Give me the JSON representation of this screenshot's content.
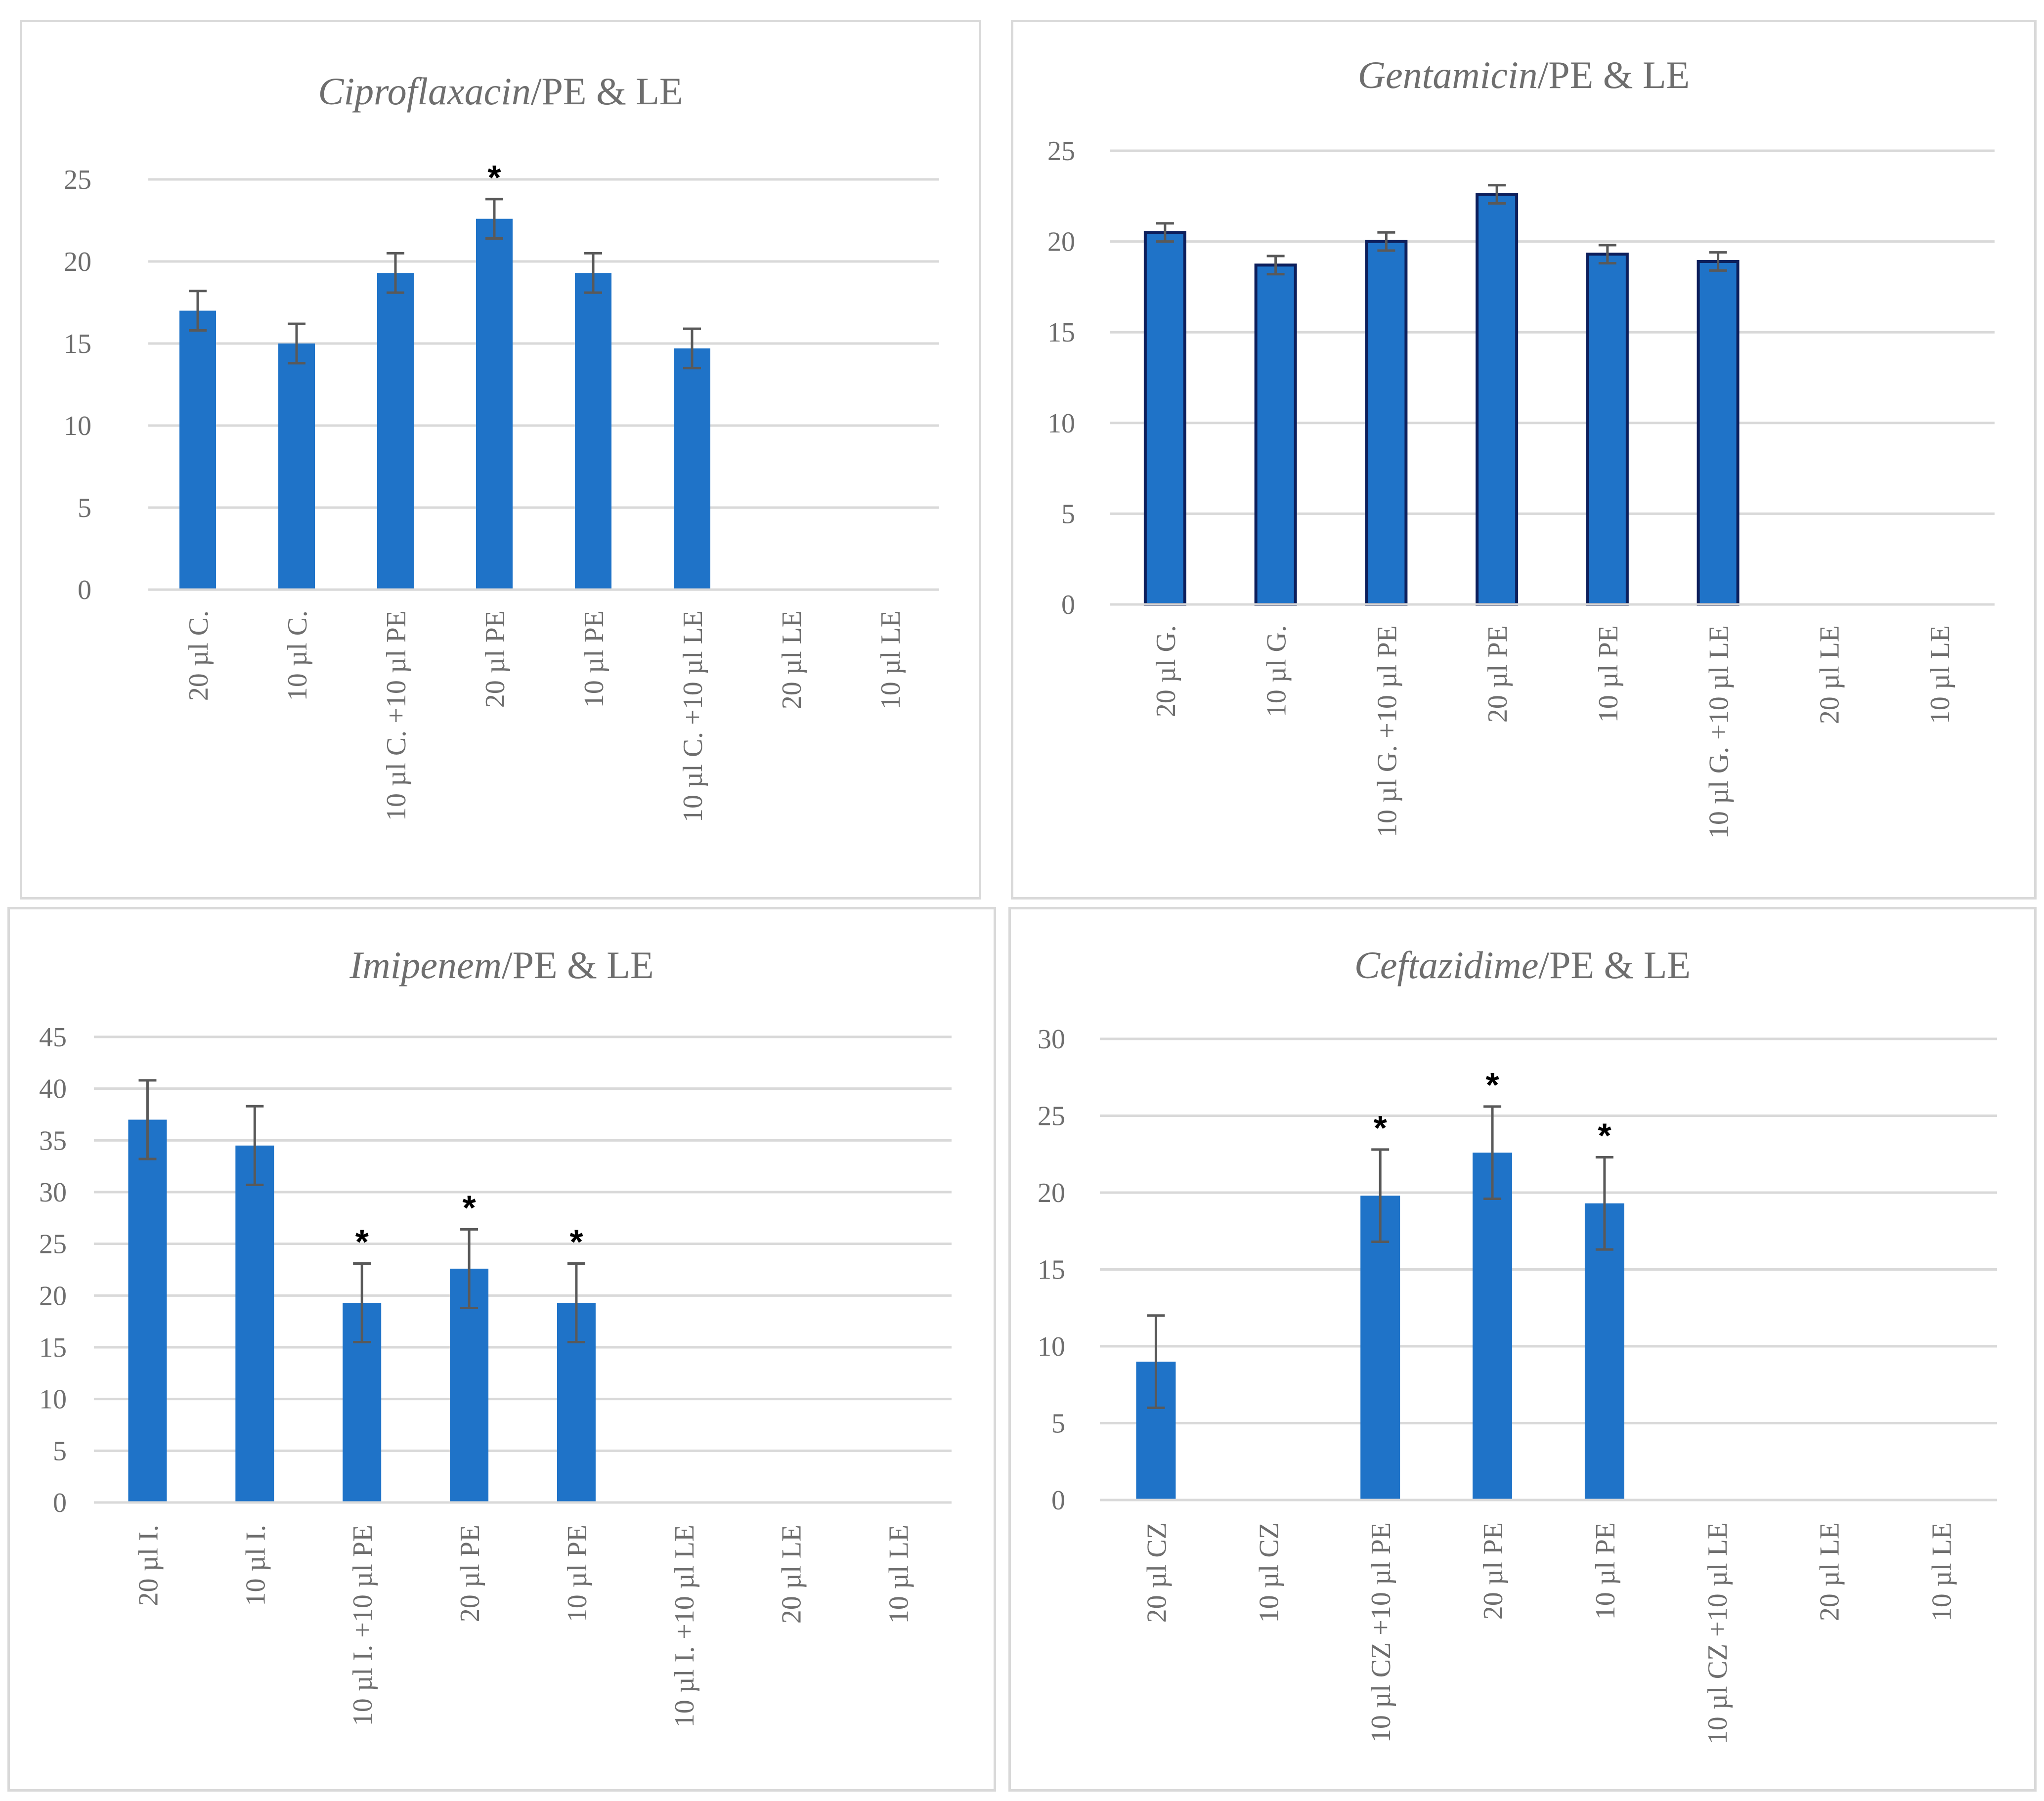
{
  "colors": {
    "bar": "#1f73c8",
    "bar_outlined_edge": "#0d1f5c",
    "grid": "#d9d9d9",
    "error_bar": "#595959",
    "text": "#6e6e6e"
  },
  "chart_data": [
    {
      "type": "bar",
      "title_italic": "Ciproflaxacin",
      "title_rest": "/PE & LE",
      "categories": [
        "20 µl C.",
        "10 µl C.",
        "10 µl C. +10 µl PE",
        "20 µl PE",
        "10 µl PE",
        "10 µl C. +10 µl LE",
        "20 µl LE",
        "10 µl LE"
      ],
      "values": [
        17,
        15,
        19.3,
        22.6,
        19.3,
        14.7,
        0,
        0
      ],
      "errors": [
        1.2,
        1.2,
        1.2,
        1.2,
        1.2,
        1.2,
        0,
        0
      ],
      "significance": [
        "",
        "",
        "",
        "*",
        "",
        "",
        "",
        ""
      ],
      "yticks": [
        "0",
        "5",
        "10",
        "15",
        "20",
        "25"
      ],
      "ylim": [
        0,
        25
      ],
      "grid": true,
      "outlined": false
    },
    {
      "type": "bar",
      "title_italic": "Gentamicin",
      "title_rest": "/PE & LE",
      "categories": [
        "20 µl G.",
        "10 µl G.",
        "10 µl G. +10 µl PE",
        "20 µl PE",
        "10 µl PE",
        "10 µl G. +10 µl LE",
        "20 µl LE",
        "10 µl LE"
      ],
      "values": [
        20.5,
        18.7,
        20,
        22.6,
        19.3,
        18.9,
        0,
        0
      ],
      "errors": [
        0.5,
        0.5,
        0.5,
        0.5,
        0.5,
        0.5,
        0,
        0
      ],
      "significance": [
        "",
        "",
        "",
        "",
        "",
        "",
        "",
        ""
      ],
      "yticks": [
        "0",
        "5",
        "10",
        "15",
        "20",
        "25"
      ],
      "ylim": [
        0,
        25
      ],
      "grid": true,
      "outlined": true
    },
    {
      "type": "bar",
      "title_italic": "Imipenem",
      "title_rest": "/PE & LE",
      "categories": [
        "20 µl I.",
        "10 µl I.",
        "10 µl I. +10 µl PE",
        "20 µl PE",
        "10 µl PE",
        "10 µl I. +10 µl LE",
        "20 µl LE",
        "10 µl LE"
      ],
      "values": [
        37,
        34.5,
        19.3,
        22.6,
        19.3,
        0,
        0,
        0
      ],
      "errors": [
        3.8,
        3.8,
        3.8,
        3.8,
        3.8,
        0,
        0,
        0
      ],
      "significance": [
        "",
        "",
        "*",
        "*",
        "*",
        "",
        "",
        ""
      ],
      "yticks": [
        "0",
        "5",
        "10",
        "15",
        "20",
        "25",
        "30",
        "35",
        "40",
        "45"
      ],
      "ylim": [
        0,
        45
      ],
      "grid": true,
      "outlined": false
    },
    {
      "type": "bar",
      "title_italic": "Ceftazidime",
      "title_rest": "/PE & LE",
      "categories": [
        "20 µl CZ",
        "10 µl CZ",
        "10 µl CZ +10 µl PE",
        "20 µl PE",
        "10 µl PE",
        "10 µl CZ +10 µl LE",
        "20 µl LE",
        "10 µl LE"
      ],
      "values": [
        9,
        0,
        19.8,
        22.6,
        19.3,
        0,
        0,
        0
      ],
      "errors": [
        3,
        0,
        3,
        3,
        3,
        0,
        0,
        0
      ],
      "significance": [
        "",
        "",
        "*",
        "*",
        "*",
        "",
        "",
        ""
      ],
      "yticks": [
        "0",
        "5",
        "10",
        "15",
        "20",
        "25",
        "30"
      ],
      "ylim": [
        0,
        30
      ],
      "grid": true,
      "outlined": false
    }
  ]
}
